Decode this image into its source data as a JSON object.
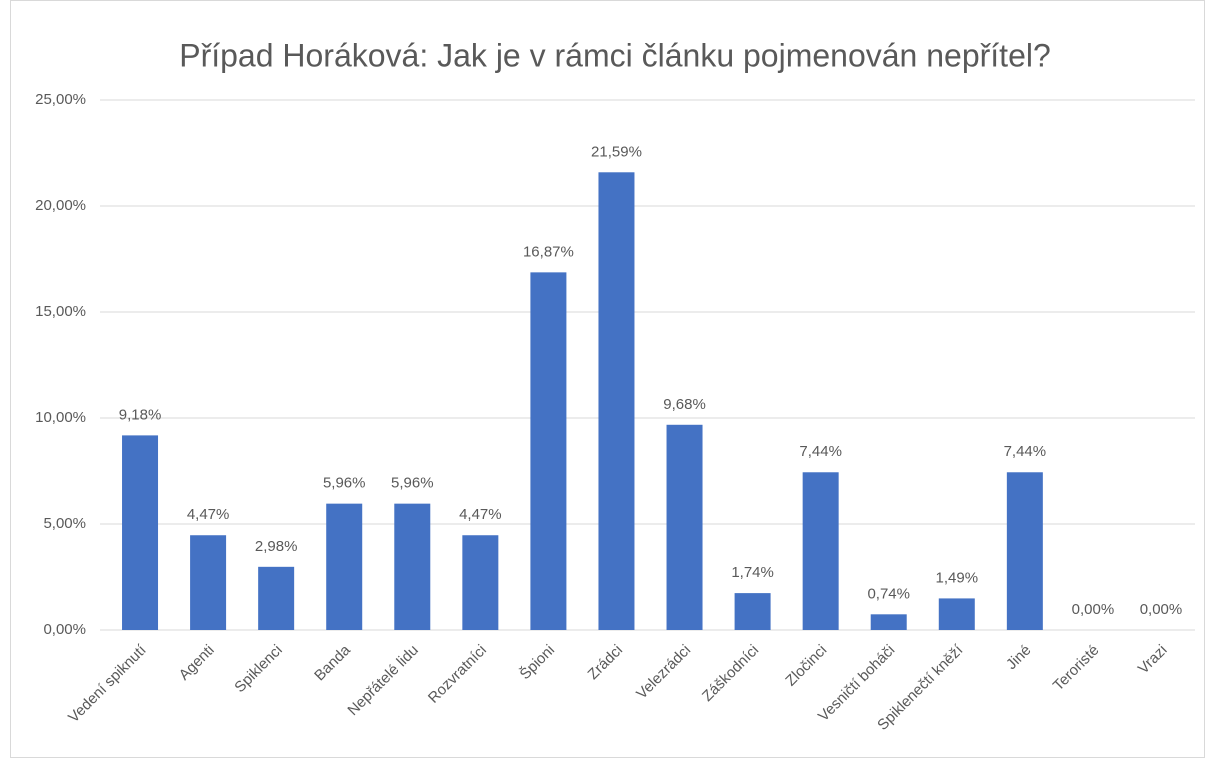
{
  "chart_data": {
    "type": "bar",
    "title": "Případ Horáková: Jak je v rámci článku pojmenován nepřítel?",
    "categories": [
      "Vedení spiknutí",
      "Agenti",
      "Spiklenci",
      "Banda",
      "Nepřátelé lidu",
      "Rozvratníci",
      "Špioni",
      "Zrádci",
      "Velezrádci",
      "Záškodníci",
      "Zločinci",
      "Vesničtí boháči",
      "Spiklenečtí kněží",
      "Jiné",
      "Teroristé",
      "Vrazi"
    ],
    "values": [
      9.18,
      4.47,
      2.98,
      5.96,
      5.96,
      4.47,
      16.87,
      21.59,
      9.68,
      1.74,
      7.44,
      0.74,
      1.49,
      7.44,
      0,
      0
    ],
    "value_labels": [
      "9,18%",
      "4,47%",
      "2,98%",
      "5,96%",
      "5,96%",
      "4,47%",
      "16,87%",
      "21,59%",
      "9,68%",
      "1,74%",
      "7,44%",
      "0,74%",
      "1,49%",
      "7,44%",
      "0,00%",
      "0,00%"
    ],
    "color": "#4472c4",
    "ylim": [
      0,
      25
    ],
    "yticks": [
      {
        "value": 0,
        "label": "0,00%"
      },
      {
        "value": 5,
        "label": "5,00%"
      },
      {
        "value": 10,
        "label": "10,00%"
      },
      {
        "value": 15,
        "label": "15,00%"
      },
      {
        "value": 20,
        "label": "20,00%"
      },
      {
        "value": 25,
        "label": "25,00%"
      }
    ],
    "grid": true
  }
}
